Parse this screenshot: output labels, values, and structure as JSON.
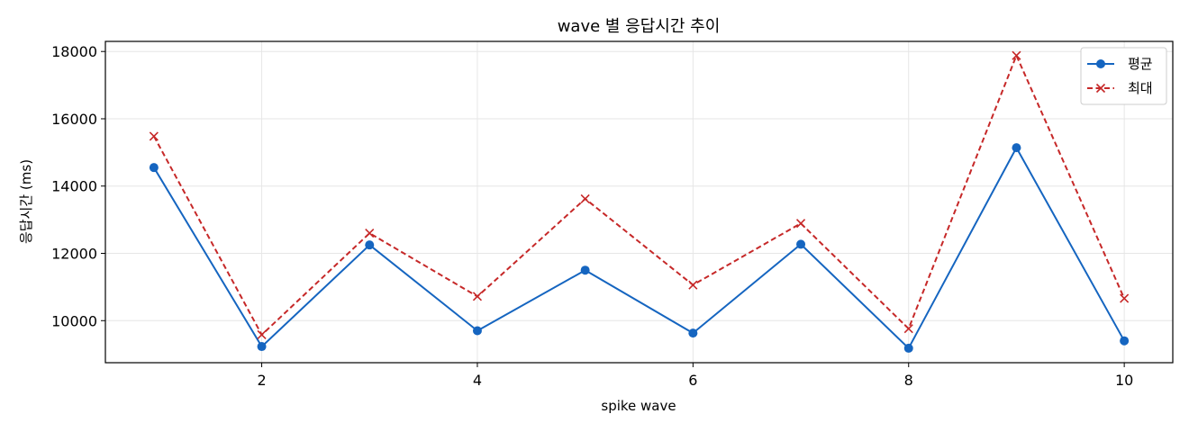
{
  "chart_data": {
    "type": "line",
    "title": "wave 별 응답시간 추이",
    "xlabel": "spike wave",
    "ylabel": "응답시간 (ms)",
    "x": [
      1,
      2,
      3,
      4,
      5,
      6,
      7,
      8,
      9,
      10
    ],
    "xlim": [
      0.55,
      10.45
    ],
    "ylim": [
      8750,
      18300
    ],
    "xticks": [
      2,
      4,
      6,
      8,
      10
    ],
    "yticks": [
      10000,
      12000,
      14000,
      16000,
      18000
    ],
    "grid": true,
    "legend_position": "top-right",
    "series": [
      {
        "name": "평균",
        "color": "#1565c0",
        "line_style": "solid",
        "marker": "circle",
        "values": [
          14550,
          9230,
          12250,
          9700,
          11500,
          9630,
          12270,
          9180,
          15140,
          9400
        ]
      },
      {
        "name": "최대",
        "color": "#c62828",
        "line_style": "dashed",
        "marker": "x",
        "values": [
          15480,
          9580,
          12600,
          10720,
          13620,
          11060,
          12890,
          9760,
          17880,
          10660
        ]
      }
    ]
  }
}
